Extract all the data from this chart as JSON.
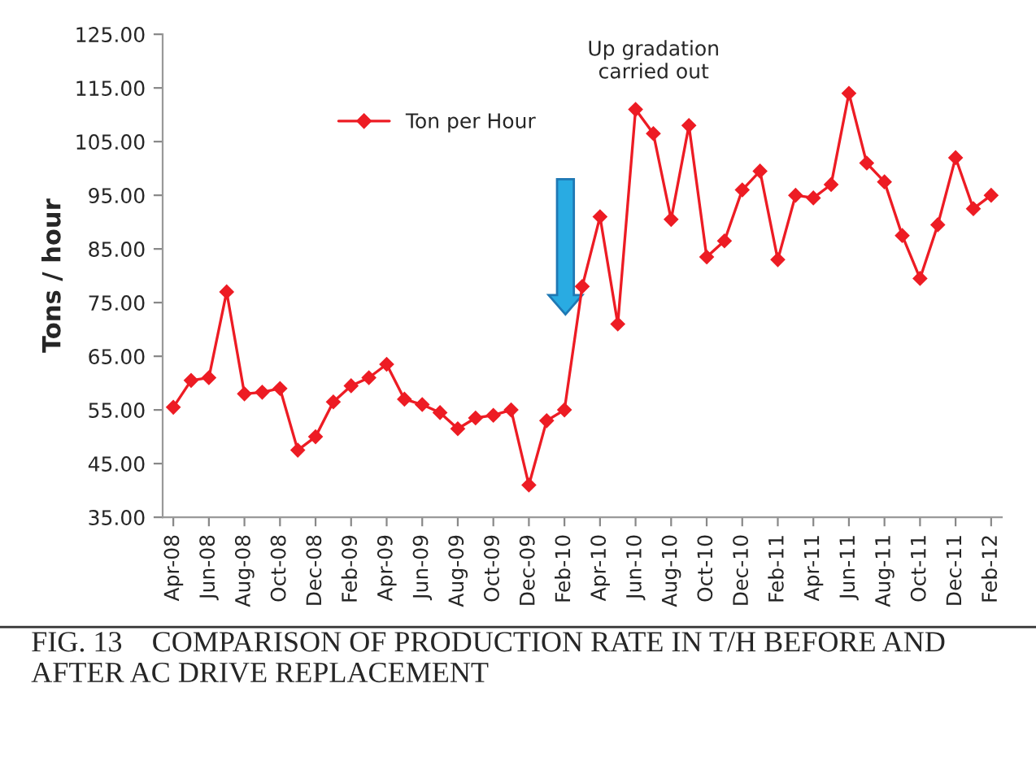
{
  "chart_data": {
    "type": "line",
    "ylabel": "Tons / hour",
    "categories": [
      "Apr-08",
      null,
      "Jun-08",
      null,
      "Aug-08",
      null,
      "Oct-08",
      null,
      "Dec-08",
      null,
      "Feb-09",
      null,
      "Apr-09",
      null,
      "Jun-09",
      null,
      "Aug-09",
      null,
      "Oct-09",
      null,
      "Dec-09",
      null,
      "Feb-10",
      null,
      "Apr-10",
      null,
      "Jun-10",
      null,
      "Aug-10",
      null,
      "Oct-10",
      null,
      "Dec-10",
      null,
      "Feb-11",
      null,
      "Apr-11",
      null,
      "Jun-11",
      null,
      "Aug-11",
      null,
      "Oct-11",
      null,
      "Dec-11",
      null,
      "Feb-12"
    ],
    "series": [
      {
        "name": "Ton per Hour",
        "color": "#ed1c24",
        "values": [
          55.5,
          60.5,
          61,
          77,
          58,
          58.3,
          59,
          47.5,
          50,
          56.5,
          59.5,
          61,
          63.5,
          57,
          56,
          54.5,
          51.5,
          53.5,
          54,
          55,
          41,
          53,
          55,
          78,
          91,
          71,
          111,
          106.5,
          90.5,
          108,
          83.5,
          86.5,
          96,
          99.5,
          83,
          95,
          94.5,
          97,
          114,
          101,
          97.5,
          87.5,
          79.5,
          89.5,
          102,
          92.5,
          95
        ]
      }
    ],
    "ylim": [
      35,
      125
    ],
    "yticks": [
      {
        "value": 35,
        "label": "35.00"
      },
      {
        "value": 45,
        "label": "45.00"
      },
      {
        "value": 55,
        "label": "55.00"
      },
      {
        "value": 65,
        "label": "65.00"
      },
      {
        "value": 75,
        "label": "75.00"
      },
      {
        "value": 85,
        "label": "85.00"
      },
      {
        "value": 95,
        "label": "95.00"
      },
      {
        "value": 105,
        "label": "105.00"
      },
      {
        "value": 115,
        "label": "115.00"
      },
      {
        "value": 125,
        "label": "125.00"
      }
    ],
    "annotations": [
      "Up gradation\ncarried out",
      "FIG. 13    COMPARISON OF PRODUCTION RATE IN T/H BEFORE AND AFTER AC DRIVE REPLACEMENT"
    ],
    "legend": "top left",
    "grid": false,
    "marker": "diamond",
    "line_style": "solid"
  }
}
